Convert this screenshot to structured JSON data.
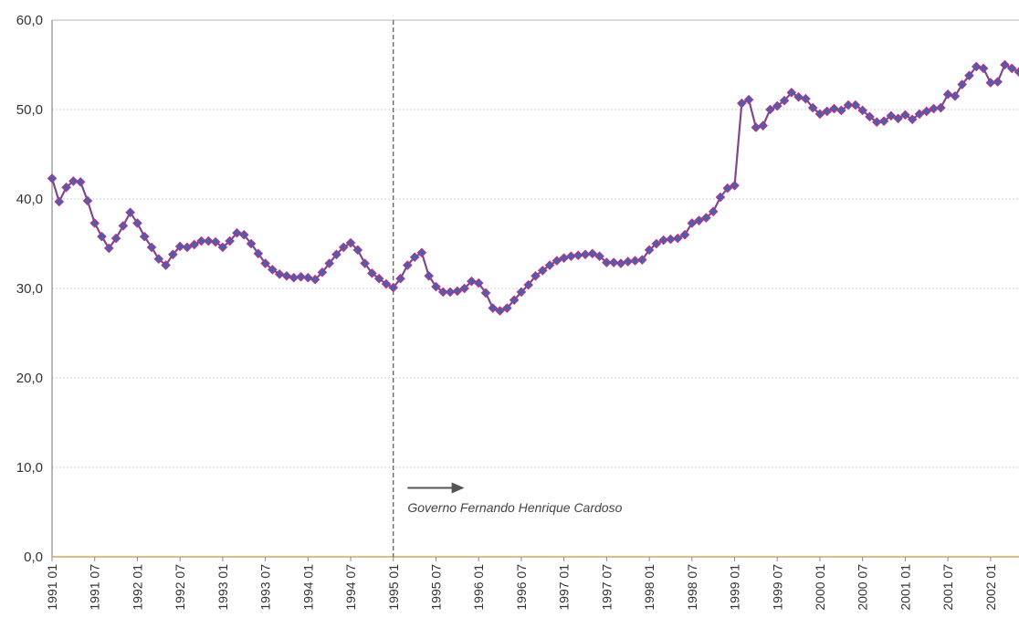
{
  "chart_data": {
    "type": "line",
    "title": "",
    "xlabel": "",
    "ylabel": "",
    "ylim": [
      0,
      60
    ],
    "yticks": [
      "0,0",
      "10,0",
      "20,0",
      "30,0",
      "40,0",
      "50,0",
      "60,0"
    ],
    "grid": true,
    "legend": "none",
    "x_start": "1991 01",
    "x_end": "2002 03",
    "x_tick_labels": [
      "1991 01",
      "1991 07",
      "1992 01",
      "1992 07",
      "1993 01",
      "1993 07",
      "1994 01",
      "1994 07",
      "1995 01",
      "1995 07",
      "1996 01",
      "1996 07",
      "1997 01",
      "1997 07",
      "1998 01",
      "1998 07",
      "1999 01",
      "1999 07",
      "2000 01",
      "2000 07",
      "2001 01",
      "2001 07",
      "2002 01"
    ],
    "series": [
      {
        "color": "#7a4a8f",
        "marker_color": "#4b5fb0",
        "values": [
          42.3,
          39.7,
          41.3,
          42.0,
          41.9,
          39.8,
          37.3,
          35.8,
          34.5,
          35.6,
          37.0,
          38.5,
          37.3,
          35.8,
          34.6,
          33.3,
          32.6,
          33.8,
          34.7,
          34.6,
          34.9,
          35.3,
          35.3,
          35.2,
          34.6,
          35.3,
          36.2,
          36.0,
          35.0,
          33.9,
          32.8,
          32.1,
          31.6,
          31.4,
          31.2,
          31.3,
          31.2,
          31.0,
          31.8,
          32.8,
          33.8,
          34.6,
          35.1,
          34.3,
          32.8,
          31.7,
          31.1,
          30.5,
          30.1,
          31.1,
          32.6,
          33.5,
          34.0,
          31.4,
          30.2,
          29.6,
          29.6,
          29.7,
          30.0,
          30.8,
          30.6,
          29.5,
          27.8,
          27.5,
          27.8,
          28.7,
          29.6,
          30.4,
          31.4,
          32.0,
          32.6,
          33.1,
          33.4,
          33.6,
          33.7,
          33.8,
          33.9,
          33.6,
          32.9,
          32.9,
          32.8,
          33.0,
          33.1,
          33.2,
          34.3,
          35.0,
          35.4,
          35.5,
          35.6,
          36.0,
          37.3,
          37.6,
          37.9,
          38.6,
          40.2,
          41.2,
          41.5,
          50.7,
          51.1,
          48.0,
          48.2,
          50.0,
          50.4,
          51.0,
          51.9,
          51.4,
          51.2,
          50.2,
          49.5,
          49.8,
          50.1,
          49.9,
          50.5,
          50.5,
          49.9,
          49.2,
          48.6,
          48.7,
          49.3,
          49.0,
          49.4,
          48.9,
          49.5,
          49.8,
          50.1,
          50.2,
          51.7,
          51.5,
          52.8,
          53.8,
          54.8,
          54.6,
          53.0,
          53.1,
          55.0,
          54.6,
          54.2
        ]
      }
    ],
    "reference_line": {
      "x": "1995 01",
      "style": "dashed",
      "color": "#555555"
    },
    "annotation": {
      "text": "Governo Fernando Henrique Cardoso",
      "arrow_from": "1995 03",
      "arrow_to": "1995 11",
      "y": 7.7,
      "text_x": "1995 03",
      "text_y": 5.0
    }
  }
}
